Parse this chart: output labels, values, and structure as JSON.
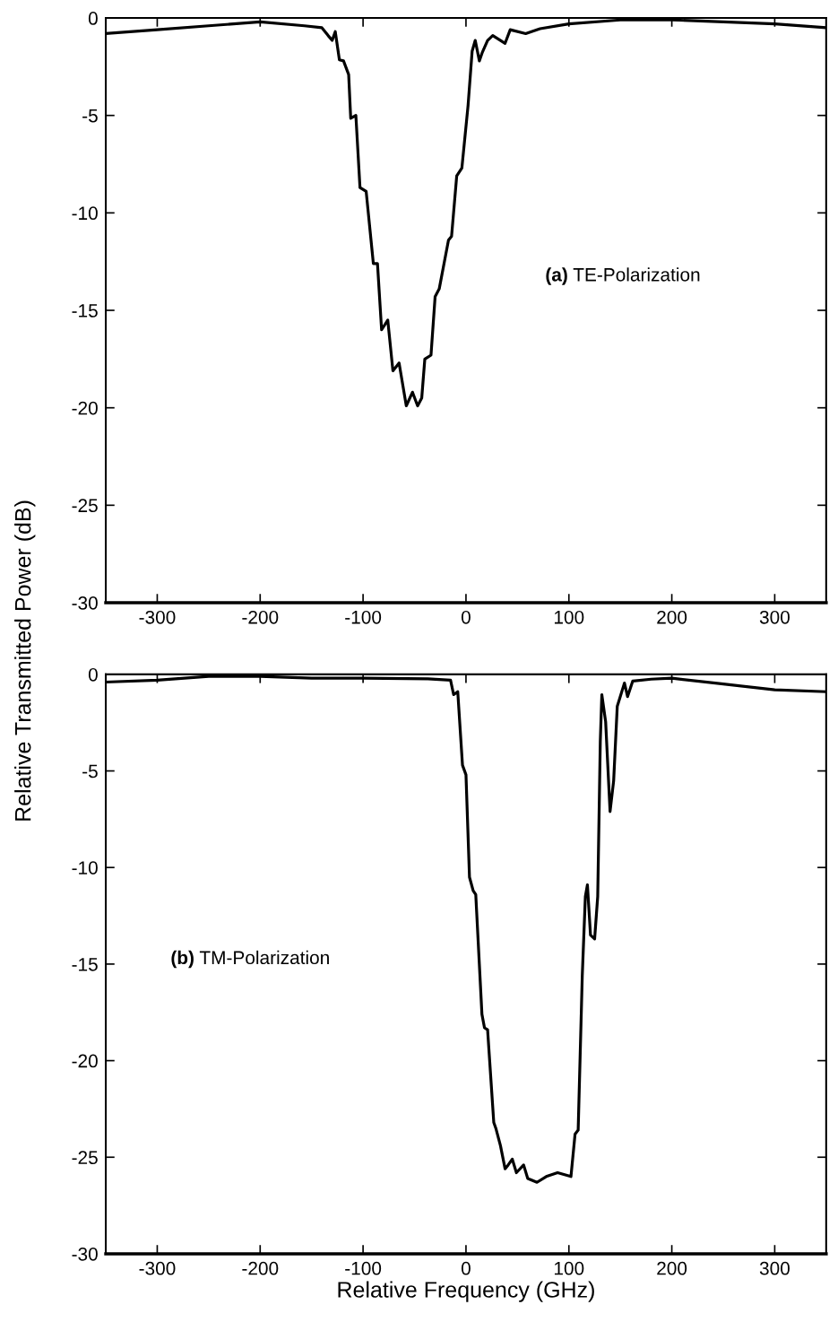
{
  "chart_data": [
    {
      "type": "line",
      "ylabel": "Relative Transmitted Power (dB)",
      "annotations": [
        "(a) TE-Polarization"
      ],
      "xlim": [
        -350,
        350
      ],
      "xticks": [
        -300,
        -200,
        -100,
        0,
        100,
        200,
        300
      ],
      "ylim": [
        -30,
        0
      ],
      "yticks": [
        -30,
        -25,
        -20,
        -15,
        -10,
        -5,
        0
      ],
      "grid": false,
      "legend": false,
      "series": [
        {
          "color": "#000000",
          "x": [
            -350,
            -300,
            -250,
            -200,
            -157,
            -140,
            -134,
            -130,
            -127,
            -123,
            -119,
            -114,
            -112,
            -107,
            -103,
            -97,
            -90,
            -86,
            -82,
            -76,
            -71,
            -65,
            -58,
            -52,
            -47,
            -43,
            -40,
            -34,
            -30,
            -26,
            -17,
            -14,
            -9,
            -4,
            2,
            6,
            9,
            13,
            16,
            21,
            26,
            38,
            43,
            58,
            72,
            100,
            150,
            200,
            250,
            300,
            350
          ],
          "values": [
            -0.8,
            -0.6,
            -0.4,
            -0.2,
            -0.4,
            -0.5,
            -0.9,
            -1.15,
            -0.7,
            -2.15,
            -2.2,
            -2.9,
            -5.15,
            -5.0,
            -8.7,
            -8.9,
            -12.6,
            -12.6,
            -16.0,
            -15.5,
            -18.1,
            -17.7,
            -19.9,
            -19.2,
            -19.9,
            -19.5,
            -17.5,
            -17.3,
            -14.3,
            -13.9,
            -11.4,
            -11.2,
            -8.1,
            -7.7,
            -4.5,
            -1.7,
            -1.15,
            -2.2,
            -1.75,
            -1.15,
            -0.9,
            -1.3,
            -0.6,
            -0.8,
            -0.55,
            -0.3,
            -0.1,
            -0.1,
            -0.2,
            -0.3,
            -0.5
          ]
        }
      ]
    },
    {
      "type": "line",
      "xlabel": "Relative Frequency (GHz)",
      "annotations": [
        "(b) TM-Polarization"
      ],
      "xlim": [
        -350,
        350
      ],
      "xticks": [
        -300,
        -200,
        -100,
        0,
        100,
        200,
        300
      ],
      "ylim": [
        -30,
        0
      ],
      "yticks": [
        -30,
        -25,
        -20,
        -15,
        -10,
        -5,
        0
      ],
      "grid": false,
      "legend": false,
      "series": [
        {
          "color": "#000000",
          "x": [
            -350,
            -300,
            -250,
            -200,
            -150,
            -100,
            -37,
            -15,
            -12,
            -8,
            -3.4,
            0,
            3.4,
            7,
            9.5,
            15.5,
            18,
            21,
            27,
            29,
            33.5,
            38,
            41,
            45,
            49,
            56,
            60,
            69,
            78,
            89,
            102,
            106,
            109,
            113,
            116,
            118,
            121,
            125,
            128,
            130.5,
            132,
            135.7,
            140,
            143.5,
            147,
            154,
            157,
            162,
            180,
            200,
            250,
            300,
            350
          ],
          "values": [
            -0.4,
            -0.3,
            -0.1,
            -0.1,
            -0.2,
            -0.2,
            -0.23,
            -0.3,
            -1.05,
            -0.9,
            -4.7,
            -5.2,
            -10.5,
            -11.2,
            -11.4,
            -17.6,
            -18.3,
            -18.4,
            -23.2,
            -23.5,
            -24.4,
            -25.6,
            -25.4,
            -25.1,
            -25.8,
            -25.4,
            -26.1,
            -26.3,
            -26.0,
            -25.8,
            -26.0,
            -23.8,
            -23.6,
            -15.6,
            -11.5,
            -10.9,
            -13.5,
            -13.7,
            -11.5,
            -3.5,
            -1.05,
            -2.45,
            -7.1,
            -5.5,
            -1.65,
            -0.45,
            -1.15,
            -0.35,
            -0.25,
            -0.2,
            -0.5,
            -0.8,
            -0.9
          ]
        }
      ]
    }
  ]
}
